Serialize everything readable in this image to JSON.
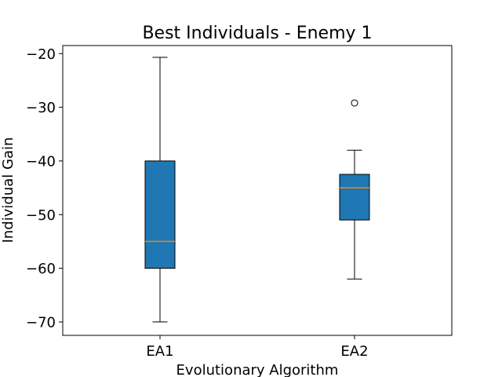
{
  "chart_data": {
    "type": "box",
    "title": "Best Individuals - Enemy 1",
    "xlabel": "Evolutionary Algorithm",
    "ylabel": "Individual Gain",
    "ylim": [
      -72.5,
      -18.5
    ],
    "yticks": [
      -20,
      -30,
      -40,
      -50,
      -60,
      -70
    ],
    "ytick_labels": [
      "−20",
      "−30",
      "−40",
      "−50",
      "−60",
      "−70"
    ],
    "categories": [
      "EA1",
      "EA2"
    ],
    "boxes": [
      {
        "category": "EA1",
        "whisker_low": -70,
        "q1": -60,
        "median": -55,
        "q3": -40,
        "whisker_high": -20.7,
        "outliers": []
      },
      {
        "category": "EA2",
        "whisker_low": -62,
        "q1": -51,
        "median": -45,
        "q3": -42.5,
        "whisker_high": -38,
        "outliers": [
          -29.2
        ]
      }
    ],
    "grid": false,
    "colors": {
      "box_fill": "#1f77b4",
      "median": "#ff7f0e",
      "lines": "#000000"
    }
  }
}
